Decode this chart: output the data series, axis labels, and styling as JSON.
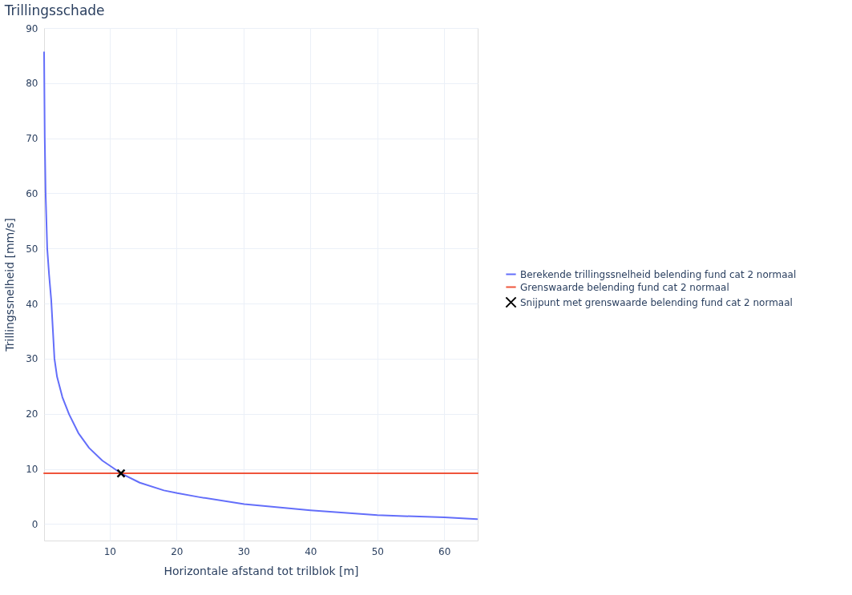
{
  "chart_data": {
    "type": "line",
    "title": "Trillingsschade",
    "xlabel": "Horizontale afstand tot trilblok [m]",
    "ylabel": "Trillingssnelheid [mm/s]",
    "xlim": [
      0.2,
      65
    ],
    "ylim": [
      -3,
      90
    ],
    "xticks": [
      10,
      20,
      30,
      40,
      50,
      60
    ],
    "yticks": [
      0,
      10,
      20,
      30,
      40,
      50,
      60,
      70,
      80,
      90
    ],
    "grid": true,
    "legend": "right",
    "series": [
      {
        "name": "Berekende trillingssnelheid belending fund cat 2 normaal",
        "color": "#636efa",
        "x": [
          0.2,
          0.3,
          0.43,
          0.67,
          0.95,
          1.27,
          1.75,
          2.14,
          2.94,
          3.94,
          5.33,
          6.93,
          8.92,
          11.7,
          14.5,
          18.1,
          20.1,
          23.3,
          30.1,
          40,
          50,
          60,
          64.9
        ],
        "values": [
          85.6,
          70,
          60,
          50,
          45.2,
          40.6,
          30,
          26.7,
          23,
          19.9,
          16.5,
          13.8,
          11.5,
          9.2,
          7.5,
          6.1,
          5.6,
          4.9,
          3.6,
          2.5,
          1.6,
          1.2,
          0.9
        ]
      },
      {
        "name": "Grenswaarde belending fund cat 2 normaal",
        "color": "#ef553b",
        "x": [
          0.2,
          65
        ],
        "values": [
          9.2,
          9.2
        ]
      },
      {
        "name": "Snijpunt met grenswaarde belending fund cat 2 normaal",
        "color": "#000000",
        "type": "scatter",
        "marker": "cross",
        "x": [
          11.7
        ],
        "values": [
          9.2
        ]
      }
    ]
  }
}
